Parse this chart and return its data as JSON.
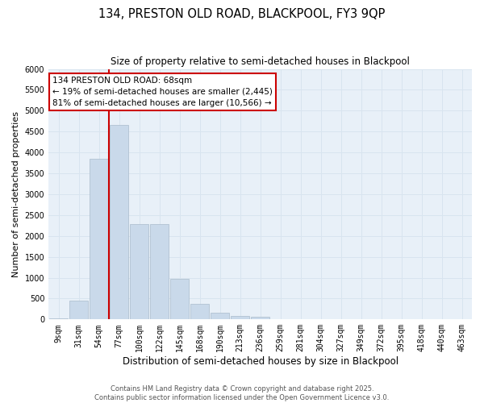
{
  "title1": "134, PRESTON OLD ROAD, BLACKPOOL, FY3 9QP",
  "title2": "Size of property relative to semi-detached houses in Blackpool",
  "xlabel": "Distribution of semi-detached houses by size in Blackpool",
  "ylabel": "Number of semi-detached properties",
  "bar_color": "#c9d9ea",
  "bar_edge_color": "#aabbcc",
  "categories": [
    "9sqm",
    "31sqm",
    "54sqm",
    "77sqm",
    "100sqm",
    "122sqm",
    "145sqm",
    "168sqm",
    "190sqm",
    "213sqm",
    "236sqm",
    "259sqm",
    "281sqm",
    "304sqm",
    "327sqm",
    "349sqm",
    "372sqm",
    "395sqm",
    "418sqm",
    "440sqm",
    "463sqm"
  ],
  "values": [
    30,
    450,
    3850,
    4650,
    2280,
    2280,
    980,
    380,
    170,
    90,
    70,
    0,
    0,
    0,
    0,
    0,
    0,
    0,
    0,
    0,
    0
  ],
  "ylim": [
    0,
    6000
  ],
  "yticks": [
    0,
    500,
    1000,
    1500,
    2000,
    2500,
    3000,
    3500,
    4000,
    4500,
    5000,
    5500,
    6000
  ],
  "property_label": "134 PRESTON OLD ROAD: 68sqm",
  "pct_smaller": 19,
  "count_smaller": 2445,
  "pct_larger": 81,
  "count_larger": 10566,
  "vline_color": "#cc0000",
  "annotation_border_color": "#cc0000",
  "grid_color": "#d8e4ef",
  "background_color": "#e8f0f8",
  "footnote": "Contains HM Land Registry data © Crown copyright and database right 2025.\nContains public sector information licensed under the Open Government Licence v3.0.",
  "title1_fontsize": 10.5,
  "title2_fontsize": 8.5,
  "xlabel_fontsize": 8.5,
  "ylabel_fontsize": 8,
  "tick_fontsize": 7,
  "annotation_fontsize": 7.5,
  "footnote_fontsize": 6
}
